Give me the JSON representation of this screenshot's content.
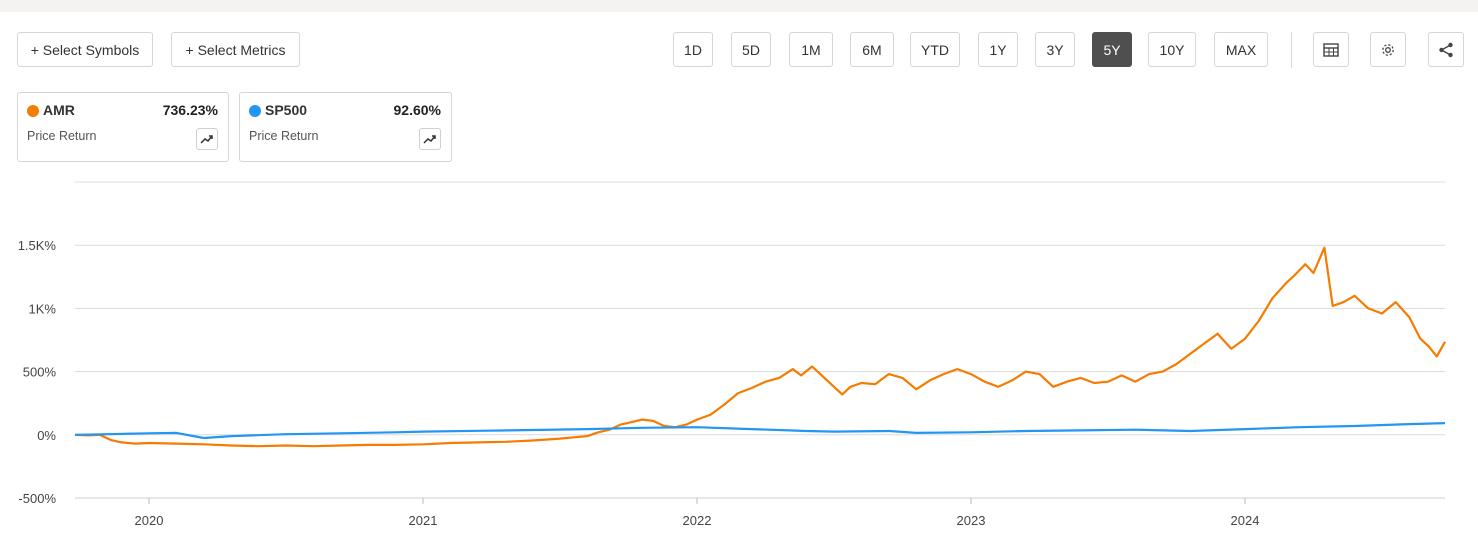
{
  "toolbar": {
    "select_symbols": "+ Select Symbols",
    "select_metrics": "+ Select Metrics",
    "ranges": [
      "1D",
      "5D",
      "1M",
      "6M",
      "YTD",
      "1Y",
      "3Y",
      "5Y",
      "10Y",
      "MAX"
    ],
    "active_range": "5Y"
  },
  "legend": [
    {
      "symbol": "AMR",
      "value": "736.23%",
      "metric": "Price Return",
      "color": "#f57c00"
    },
    {
      "symbol": "SP500",
      "value": "92.60%",
      "metric": "Price Return",
      "color": "#2196f3"
    }
  ],
  "chart_data": {
    "type": "line",
    "title": "",
    "xlabel": "",
    "ylabel": "",
    "x_ticks": [
      "2020",
      "2021",
      "2022",
      "2023",
      "2024"
    ],
    "y_ticks": [
      "-500%",
      "0%",
      "500%",
      "1K%",
      "1.5K%"
    ],
    "ylim": [
      -500,
      2000
    ],
    "xlim": [
      2019.73,
      2024.73
    ],
    "grid": true,
    "series": [
      {
        "name": "AMR",
        "color": "#f57c00",
        "points": [
          [
            2019.73,
            0
          ],
          [
            2019.78,
            -5
          ],
          [
            2019.82,
            0
          ],
          [
            2019.86,
            -40
          ],
          [
            2019.9,
            -60
          ],
          [
            2019.95,
            -70
          ],
          [
            2020.0,
            -65
          ],
          [
            2020.1,
            -70
          ],
          [
            2020.2,
            -75
          ],
          [
            2020.3,
            -85
          ],
          [
            2020.4,
            -90
          ],
          [
            2020.5,
            -85
          ],
          [
            2020.6,
            -90
          ],
          [
            2020.7,
            -85
          ],
          [
            2020.8,
            -80
          ],
          [
            2020.9,
            -80
          ],
          [
            2021.0,
            -75
          ],
          [
            2021.1,
            -65
          ],
          [
            2021.2,
            -60
          ],
          [
            2021.3,
            -55
          ],
          [
            2021.4,
            -45
          ],
          [
            2021.5,
            -30
          ],
          [
            2021.55,
            -20
          ],
          [
            2021.6,
            -10
          ],
          [
            2021.64,
            20
          ],
          [
            2021.68,
            40
          ],
          [
            2021.72,
            80
          ],
          [
            2021.76,
            100
          ],
          [
            2021.8,
            120
          ],
          [
            2021.84,
            110
          ],
          [
            2021.88,
            70
          ],
          [
            2021.92,
            60
          ],
          [
            2021.96,
            80
          ],
          [
            2022.0,
            120
          ],
          [
            2022.05,
            160
          ],
          [
            2022.1,
            240
          ],
          [
            2022.15,
            330
          ],
          [
            2022.2,
            370
          ],
          [
            2022.25,
            420
          ],
          [
            2022.3,
            450
          ],
          [
            2022.35,
            520
          ],
          [
            2022.38,
            470
          ],
          [
            2022.42,
            540
          ],
          [
            2022.45,
            480
          ],
          [
            2022.5,
            380
          ],
          [
            2022.53,
            320
          ],
          [
            2022.56,
            380
          ],
          [
            2022.6,
            410
          ],
          [
            2022.65,
            400
          ],
          [
            2022.7,
            480
          ],
          [
            2022.75,
            450
          ],
          [
            2022.8,
            360
          ],
          [
            2022.85,
            430
          ],
          [
            2022.9,
            480
          ],
          [
            2022.95,
            520
          ],
          [
            2023.0,
            480
          ],
          [
            2023.05,
            420
          ],
          [
            2023.1,
            380
          ],
          [
            2023.15,
            430
          ],
          [
            2023.2,
            500
          ],
          [
            2023.25,
            480
          ],
          [
            2023.3,
            380
          ],
          [
            2023.35,
            420
          ],
          [
            2023.4,
            450
          ],
          [
            2023.45,
            410
          ],
          [
            2023.5,
            420
          ],
          [
            2023.55,
            470
          ],
          [
            2023.6,
            420
          ],
          [
            2023.65,
            480
          ],
          [
            2023.7,
            500
          ],
          [
            2023.75,
            560
          ],
          [
            2023.8,
            640
          ],
          [
            2023.85,
            720
          ],
          [
            2023.9,
            800
          ],
          [
            2023.95,
            680
          ],
          [
            2024.0,
            760
          ],
          [
            2024.05,
            900
          ],
          [
            2024.1,
            1080
          ],
          [
            2024.15,
            1200
          ],
          [
            2024.18,
            1260
          ],
          [
            2024.22,
            1350
          ],
          [
            2024.25,
            1280
          ],
          [
            2024.29,
            1480
          ],
          [
            2024.32,
            1020
          ],
          [
            2024.36,
            1050
          ],
          [
            2024.4,
            1100
          ],
          [
            2024.45,
            1000
          ],
          [
            2024.5,
            960
          ],
          [
            2024.55,
            1050
          ],
          [
            2024.6,
            930
          ],
          [
            2024.64,
            760
          ],
          [
            2024.67,
            700
          ],
          [
            2024.7,
            620
          ],
          [
            2024.73,
            736
          ]
        ]
      },
      {
        "name": "SP500",
        "color": "#2196f3",
        "points": [
          [
            2019.73,
            0
          ],
          [
            2019.85,
            5
          ],
          [
            2020.0,
            12
          ],
          [
            2020.1,
            15
          ],
          [
            2020.2,
            -25
          ],
          [
            2020.3,
            -10
          ],
          [
            2020.5,
            5
          ],
          [
            2020.7,
            12
          ],
          [
            2020.9,
            20
          ],
          [
            2021.0,
            25
          ],
          [
            2021.2,
            32
          ],
          [
            2021.4,
            38
          ],
          [
            2021.6,
            45
          ],
          [
            2021.8,
            55
          ],
          [
            2022.0,
            60
          ],
          [
            2022.2,
            45
          ],
          [
            2022.4,
            30
          ],
          [
            2022.5,
            25
          ],
          [
            2022.7,
            30
          ],
          [
            2022.8,
            15
          ],
          [
            2023.0,
            20
          ],
          [
            2023.2,
            30
          ],
          [
            2023.4,
            35
          ],
          [
            2023.6,
            40
          ],
          [
            2023.8,
            30
          ],
          [
            2024.0,
            45
          ],
          [
            2024.2,
            60
          ],
          [
            2024.4,
            70
          ],
          [
            2024.6,
            85
          ],
          [
            2024.73,
            92.6
          ]
        ]
      }
    ]
  }
}
